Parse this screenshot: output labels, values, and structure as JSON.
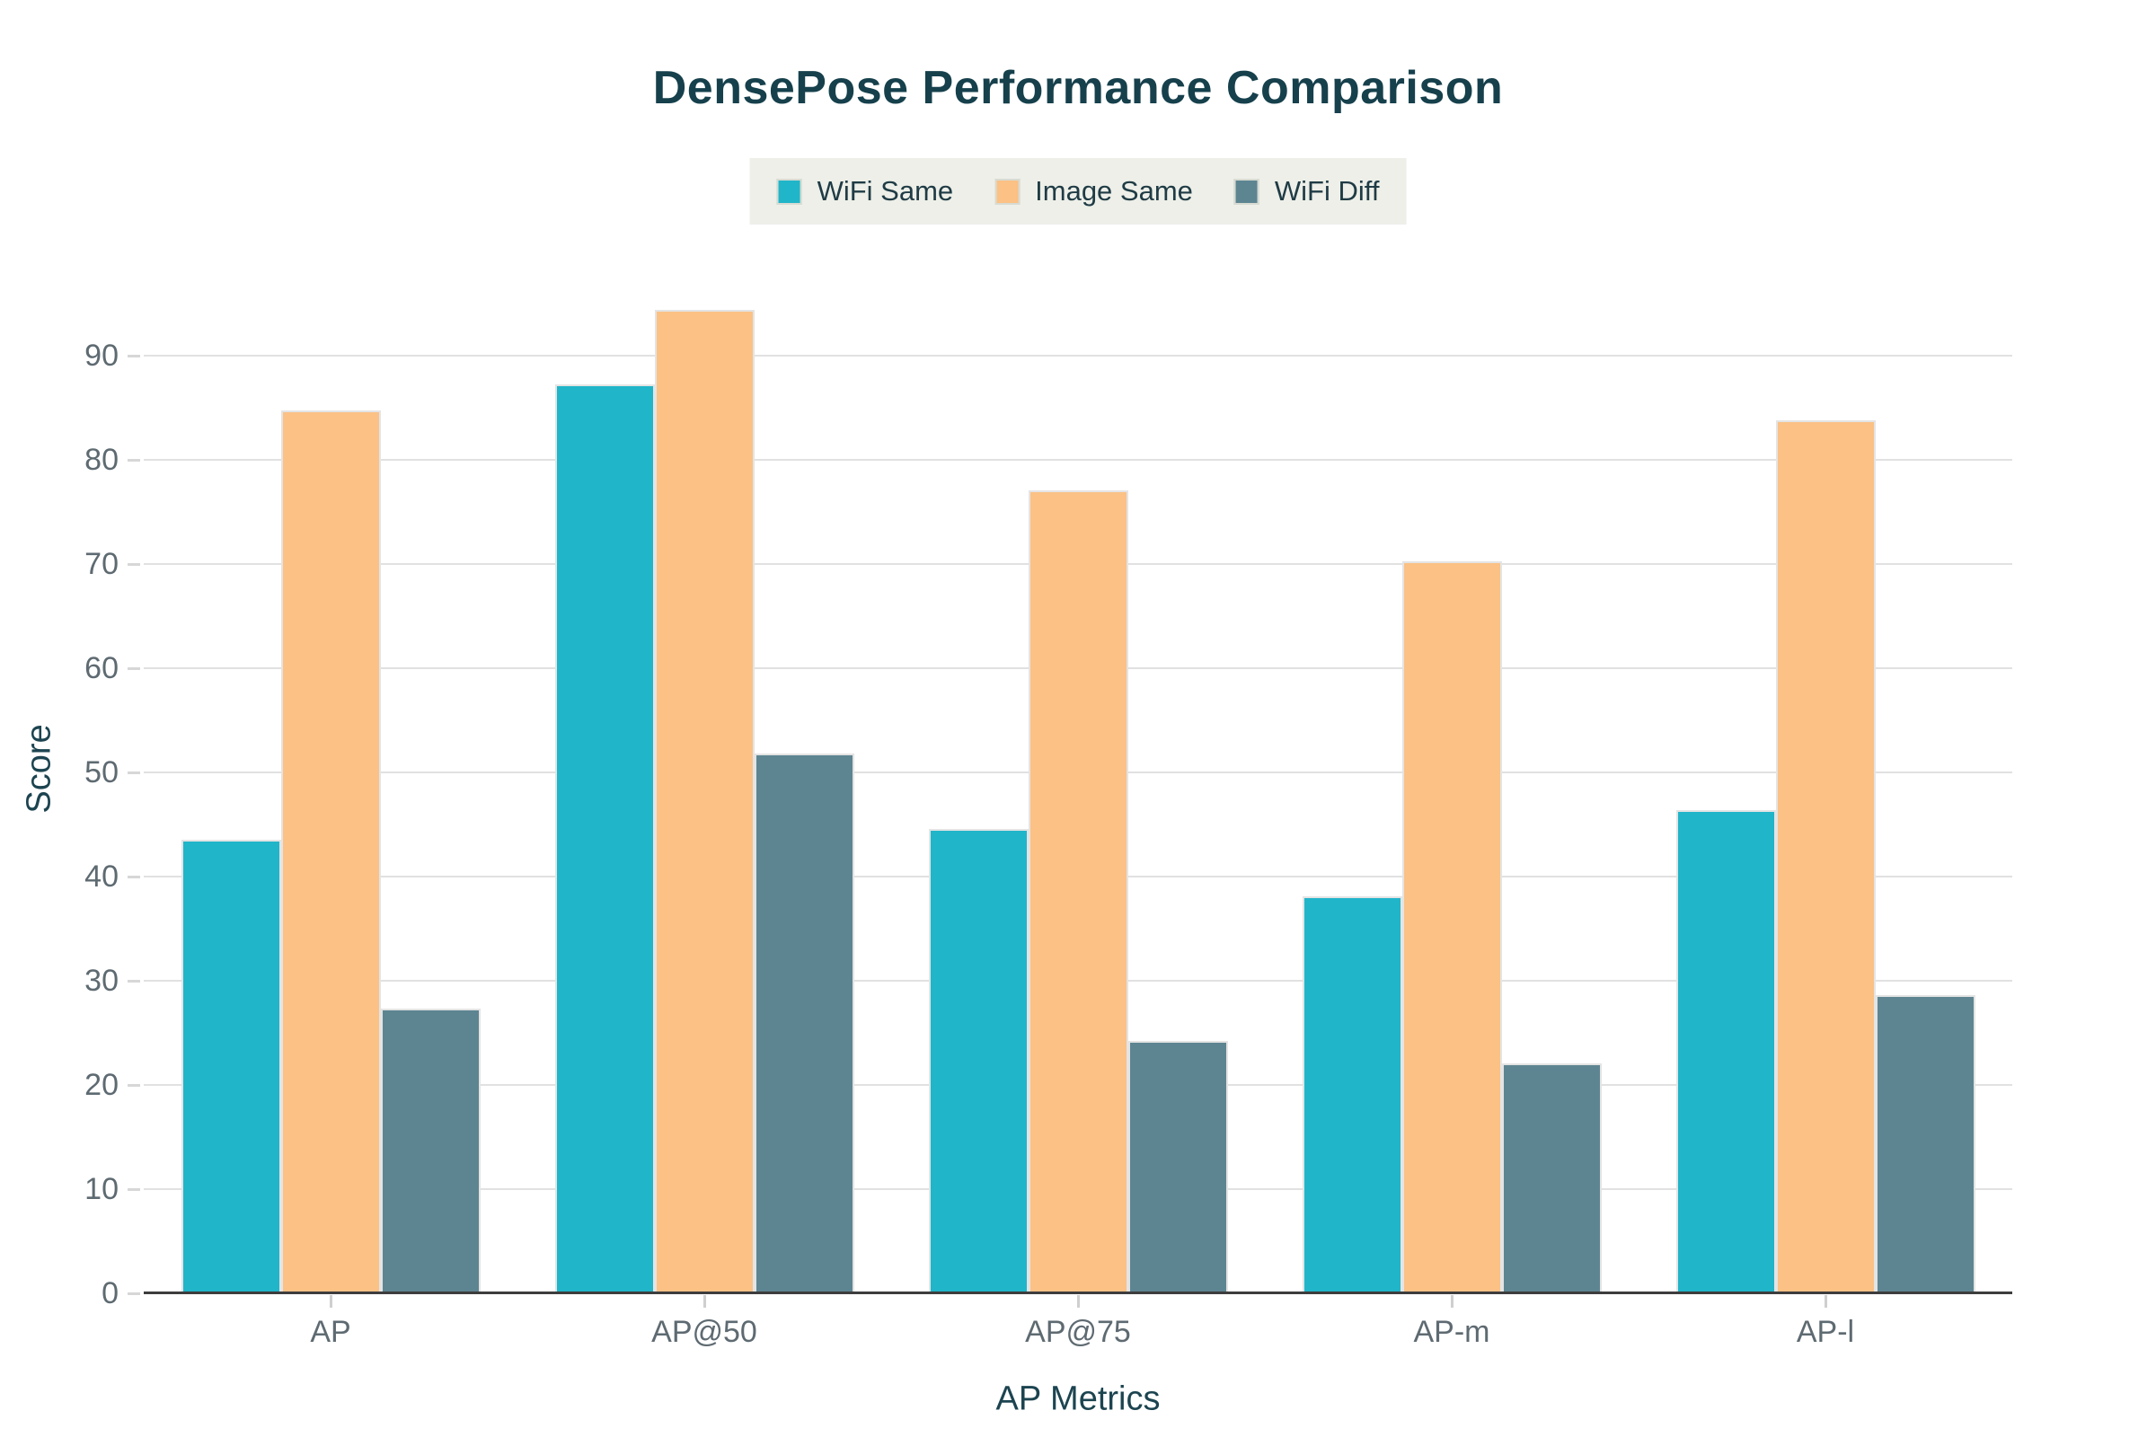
{
  "title": "DensePose Performance Comparison",
  "colors": {
    "title_text": "#16404c",
    "axis_title_text": "#1c4450",
    "tick_label_text": "#5e6a71",
    "gridline": "#e1e1e1",
    "axis_line": "#3d3d3d",
    "legend_background": "#edefe8",
    "background": "#ffffff",
    "series_teal": "#20b5c9",
    "series_orange": "#fbc185",
    "series_slate": "#5d8591"
  },
  "chart_data": {
    "type": "bar",
    "title": "DensePose Performance Comparison",
    "xlabel": "AP Metrics",
    "ylabel": "Score",
    "categories": [
      "AP",
      "AP@50",
      "AP@75",
      "AP-m",
      "AP-l"
    ],
    "series": [
      {
        "name": "WiFi Same",
        "color": "#20b5c9",
        "values": [
          43.5,
          87.2,
          44.6,
          38.1,
          46.4
        ]
      },
      {
        "name": "Image Same",
        "color": "#fbc185",
        "values": [
          84.7,
          94.4,
          77.1,
          70.3,
          83.8
        ]
      },
      {
        "name": "WiFi Diff",
        "color": "#5d8591",
        "values": [
          27.3,
          51.8,
          24.2,
          22.1,
          28.6
        ]
      }
    ],
    "ylim": [
      0,
      100
    ],
    "yticks": [
      0,
      10,
      20,
      30,
      40,
      50,
      60,
      70,
      80,
      90
    ],
    "grid": "horizontal",
    "legend_position": "top-center"
  }
}
